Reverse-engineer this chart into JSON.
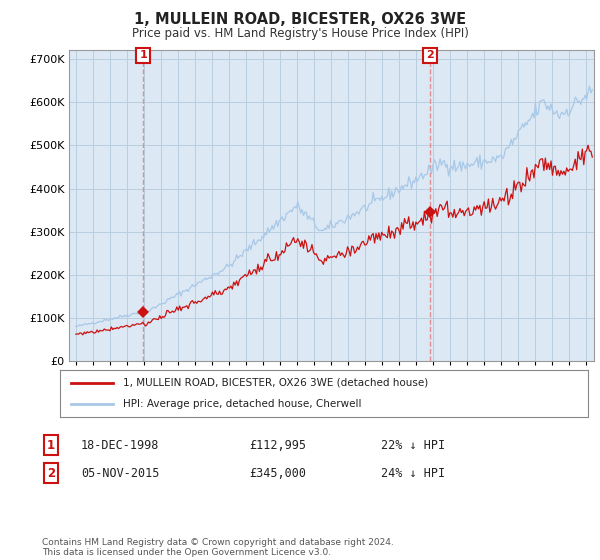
{
  "title": "1, MULLEIN ROAD, BICESTER, OX26 3WE",
  "subtitle": "Price paid vs. HM Land Registry's House Price Index (HPI)",
  "sale1_date": "18-DEC-1998",
  "sale1_price": 112995,
  "sale1_label": "22% ↓ HPI",
  "sale1_year": 1998.96,
  "sale2_date": "05-NOV-2015",
  "sale2_price": 345000,
  "sale2_label": "24% ↓ HPI",
  "sale2_year": 2015.84,
  "legend_line1": "1, MULLEIN ROAD, BICESTER, OX26 3WE (detached house)",
  "legend_line2": "HPI: Average price, detached house, Cherwell",
  "footnote": "Contains HM Land Registry data © Crown copyright and database right 2024.\nThis data is licensed under the Open Government Licence v3.0.",
  "hpi_color": "#a8c8e8",
  "price_color": "#cc1111",
  "shade_color": "#dce8f4",
  "dashed_color": "#e09090",
  "background_color": "#ffffff",
  "grid_color": "#b8cfe0",
  "ylim": [
    0,
    720000
  ],
  "xlim_start": 1994.6,
  "xlim_end": 2025.5
}
